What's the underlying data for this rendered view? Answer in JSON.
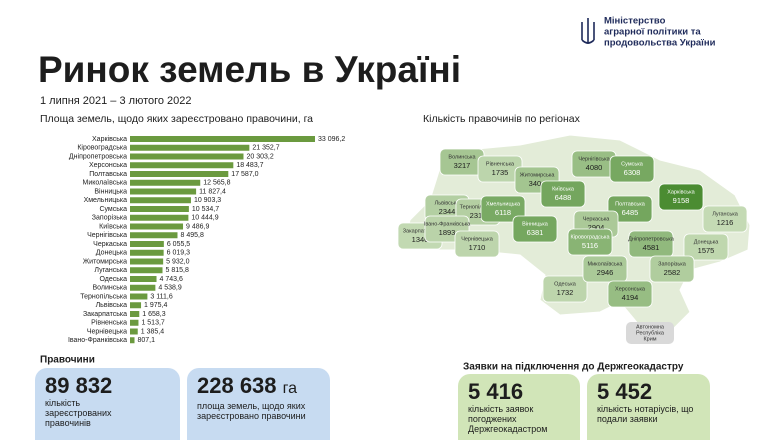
{
  "header": {
    "ministry": [
      "Міністерство",
      "аграрної політики та",
      "продовольства України"
    ],
    "title": "Ринок земель в Україні",
    "period": "1 липня 2021 – 3 лютого 2022"
  },
  "chart_data": {
    "type": "bar",
    "orientation": "horizontal",
    "title": "Площа земель, щодо яких зареєстровано правочини, га",
    "color": "#6b9a3f",
    "categories": [
      "Харківська",
      "Кіровоградська",
      "Дніпропетровська",
      "Херсонська",
      "Полтавська",
      "Миколаївська",
      "Вінницька",
      "Хмельницька",
      "Сумська",
      "Запорізька",
      "Київська",
      "Чернігівська",
      "Черкаська",
      "Донецька",
      "Житомирська",
      "Луганська",
      "Одеська",
      "Волинська",
      "Тернопільська",
      "Львівська",
      "Закарпатська",
      "Рівненська",
      "Чернівецька",
      "Івано-Франківська"
    ],
    "values": [
      33096.2,
      21352.7,
      20303.2,
      18483.7,
      17587.0,
      12565.8,
      11827.4,
      10903.3,
      10534.7,
      10444.9,
      9486.9,
      8495.8,
      6055.5,
      6019.3,
      5932.0,
      5815.8,
      4743.6,
      4538.9,
      3111.6,
      1975.4,
      1658.3,
      1513.7,
      1385.4,
      807.1
    ],
    "value_labels": [
      "33 096,2",
      "21 352,7",
      "20 303,2",
      "18 483,7",
      "17 587,0",
      "12 565,8",
      "11 827,4",
      "10 903,3",
      "10 534,7",
      "10 444,9",
      "9 486,9",
      "8 495,8",
      "6 055,5",
      "6 019,3",
      "5 932,0",
      "5 815,8",
      "4 743,6",
      "4 538,9",
      "3 111,6",
      "1 975,4",
      "1 658,3",
      "1 513,7",
      "1 385,4",
      "807,1"
    ]
  },
  "map": {
    "title": "Кількість правочинів по регіонах",
    "regions": [
      {
        "name": "Волинська",
        "value": 3217
      },
      {
        "name": "Рівненська",
        "value": 1735
      },
      {
        "name": "Житомирська",
        "value": 3404
      },
      {
        "name": "Чернігівська",
        "value": 4080
      },
      {
        "name": "Сумська",
        "value": 6308
      },
      {
        "name": "Київська",
        "value": 6488
      },
      {
        "name": "Львівська",
        "value": 2344
      },
      {
        "name": "Тернопільська",
        "value": 2319
      },
      {
        "name": "Хмельницька",
        "value": 6118
      },
      {
        "name": "Полтавська",
        "value": 6485
      },
      {
        "name": "Харківська",
        "value": 9158
      },
      {
        "name": "Луганська",
        "value": 1216
      },
      {
        "name": "Закарпатська",
        "value": 1346
      },
      {
        "name": "Івано-Франківська",
        "value": 1893
      },
      {
        "name": "Чернівецька",
        "value": 1710
      },
      {
        "name": "Вінницька",
        "value": 6381
      },
      {
        "name": "Черкаська",
        "value": 2904
      },
      {
        "name": "Кіровоградська",
        "value": 5116
      },
      {
        "name": "Дніпропетровська",
        "value": 4581
      },
      {
        "name": "Донецька",
        "value": 1575
      },
      {
        "name": "Одеська",
        "value": 1732
      },
      {
        "name": "Миколаївська",
        "value": 2946
      },
      {
        "name": "Запорізька",
        "value": 2582
      },
      {
        "name": "Херсонська",
        "value": 4194
      },
      {
        "name": "Автономна Республіка Крим"
      }
    ]
  },
  "deals": {
    "title": "Правочини",
    "count": {
      "value": "89 832",
      "label": "кількість зареєстрованих правочинів"
    },
    "area": {
      "value": "228 638",
      "unit": "га",
      "label": "площа земель, щодо яких зареєстровано правочини"
    }
  },
  "applications": {
    "title": "Заявки на підключення до Держгеокадастру",
    "approved": {
      "value": "5 416",
      "label": "кількість заявок погоджених Держгеокадастром"
    },
    "notaries": {
      "value": "5 452",
      "label": "кількість нотаріусів, що подали заявки"
    }
  }
}
